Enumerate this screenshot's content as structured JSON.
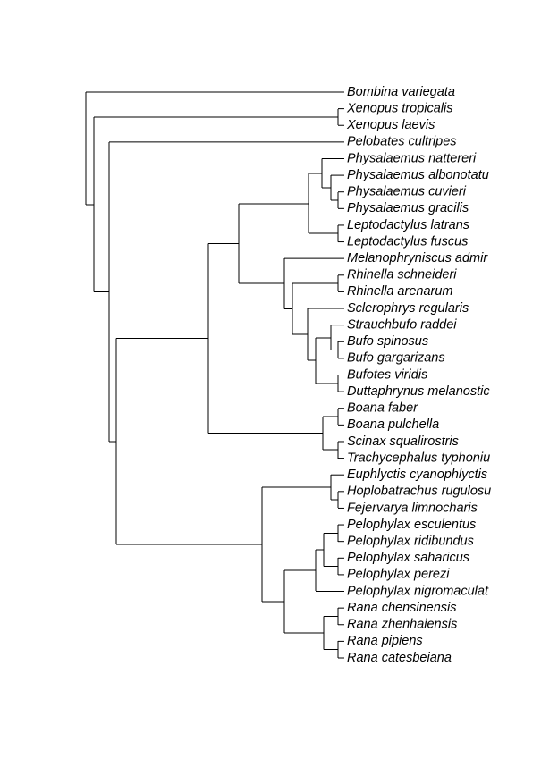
{
  "tree": {
    "tips": [
      "Bombina variegata",
      "Xenopus tropicalis",
      "Xenopus laevis",
      "Pelobates cultripes",
      "Physalaemus nattereri",
      "Physalaemus albonotatu",
      "Physalaemus cuvieri",
      "Physalaemus gracilis",
      "Leptodactylus latrans",
      "Leptodactylus fuscus",
      "Melanophryniscus admir",
      "Rhinella schneideri",
      "Rhinella arenarum",
      "Sclerophrys regularis",
      "Strauchbufo raddei",
      "Bufo spinosus",
      "Bufo gargarizans",
      "Bufotes viridis",
      "Duttaphrynus melanostic",
      "Boana faber",
      "Boana pulchella",
      "Scinax squalirostris",
      "Trachycephalus typhoniu",
      "Euphlyctis cyanophlyctis",
      "Hoplobatrachus rugulosu",
      "Fejervarya limnocharis",
      "Pelophylax esculentus",
      "Pelophylax ridibundus",
      "Pelophylax saharicus",
      "Pelophylax perezi",
      "Pelophylax nigromaculat",
      "Rana chensinensis",
      "Rana zhenhaiensis",
      "Rana pipiens",
      "Rana catesbeiana"
    ]
  }
}
